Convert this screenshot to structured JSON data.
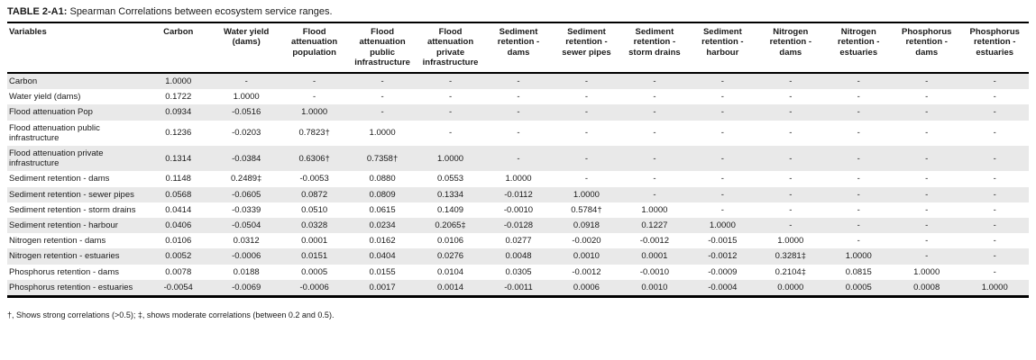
{
  "title": {
    "label": "TABLE 2-A1:",
    "text": " Spearman Correlations between ecosystem service ranges."
  },
  "footnote": "†, Shows strong correlations (>0.5); ‡, shows moderate correlations (between 0.2 and 0.5).",
  "table": {
    "columns": [
      "Variables",
      "Carbon",
      "Water yield (dams)",
      "Flood attenuation population",
      "Flood attenuation public infrastructure",
      "Flood attenuation private infrastructure",
      "Sediment retention - dams",
      "Sediment retention - sewer pipes",
      "Sediment retention - storm drains",
      "Sediment retention - harbour",
      "Nitrogen retention - dams",
      "Nitrogen retention - estuaries",
      "Phosphorus retention - dams",
      "Phosphorus retention - estuaries"
    ],
    "rows": [
      [
        "Carbon",
        "1.0000",
        "-",
        "-",
        "-",
        "-",
        "-",
        "-",
        "-",
        "-",
        "-",
        "-",
        "-",
        "-"
      ],
      [
        "Water yield (dams)",
        "0.1722",
        "1.0000",
        "-",
        "-",
        "-",
        "-",
        "-",
        "-",
        "-",
        "-",
        "-",
        "-",
        "-"
      ],
      [
        "Flood attenuation Pop",
        "0.0934",
        "-0.0516",
        "1.0000",
        "-",
        "-",
        "-",
        "-",
        "-",
        "-",
        "-",
        "-",
        "-",
        "-"
      ],
      [
        "Flood attenuation public infrastructure",
        "0.1236",
        "-0.0203",
        "0.7823†",
        "1.0000",
        "-",
        "-",
        "-",
        "-",
        "-",
        "-",
        "-",
        "-",
        "-"
      ],
      [
        "Flood attenuation private infrastructure",
        "0.1314",
        "-0.0384",
        "0.6306†",
        "0.7358†",
        "1.0000",
        "-",
        "-",
        "-",
        "-",
        "-",
        "-",
        "-",
        "-"
      ],
      [
        "Sediment retention - dams",
        "0.1148",
        "0.2489‡",
        "-0.0053",
        "0.0880",
        "0.0553",
        "1.0000",
        "-",
        "-",
        "-",
        "-",
        "-",
        "-",
        "-"
      ],
      [
        "Sediment retention - sewer pipes",
        "0.0568",
        "-0.0605",
        "0.0872",
        "0.0809",
        "0.1334",
        "-0.0112",
        "1.0000",
        "-",
        "-",
        "-",
        "-",
        "-",
        "-"
      ],
      [
        "Sediment retention - storm drains",
        "0.0414",
        "-0.0339",
        "0.0510",
        "0.0615",
        "0.1409",
        "-0.0010",
        "0.5784†",
        "1.0000",
        "-",
        "-",
        "-",
        "-",
        "-"
      ],
      [
        "Sediment retention - harbour",
        "0.0406",
        "-0.0504",
        "0.0328",
        "0.0234",
        "0.2065‡",
        "-0.0128",
        "0.0918",
        "0.1227",
        "1.0000",
        "-",
        "-",
        "-",
        "-"
      ],
      [
        "Nitrogen retention - dams",
        "0.0106",
        "0.0312",
        "0.0001",
        "0.0162",
        "0.0106",
        "0.0277",
        "-0.0020",
        "-0.0012",
        "-0.0015",
        "1.0000",
        "-",
        "-",
        "-"
      ],
      [
        "Nitrogen retention - estuaries",
        "0.0052",
        "-0.0006",
        "0.0151",
        "0.0404",
        "0.0276",
        "0.0048",
        "0.0010",
        "0.0001",
        "-0.0012",
        "0.3281‡",
        "1.0000",
        "-",
        "-"
      ],
      [
        "Phosphorus retention - dams",
        "0.0078",
        "0.0188",
        "0.0005",
        "0.0155",
        "0.0104",
        "0.0305",
        "-0.0012",
        "-0.0010",
        "-0.0009",
        "0.2104‡",
        "0.0815",
        "1.0000",
        "-"
      ],
      [
        "Phosphorus retention - estuaries",
        "-0.0054",
        "-0.0069",
        "-0.0006",
        "0.0017",
        "0.0014",
        "-0.0011",
        "0.0006",
        "0.0010",
        "-0.0004",
        "0.0000",
        "0.0005",
        "0.0008",
        "1.0000"
      ]
    ]
  }
}
